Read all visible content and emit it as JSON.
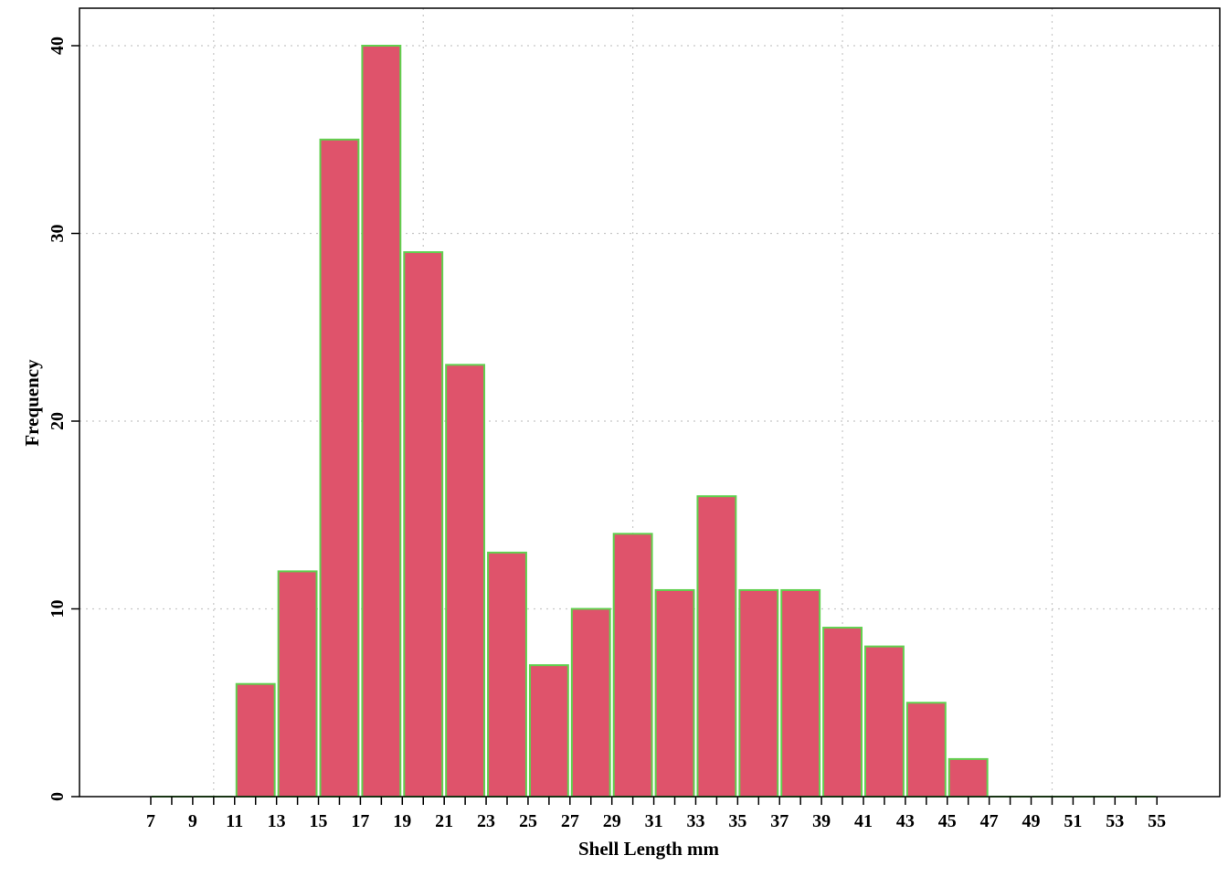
{
  "chart_data": {
    "type": "bar",
    "xlabel": "Shell Length mm",
    "ylabel": "Frequency",
    "bin_edges": [
      7,
      9,
      11,
      13,
      15,
      17,
      19,
      21,
      23,
      25,
      27,
      29,
      31,
      33,
      35,
      37,
      39,
      41,
      43,
      45,
      47,
      49,
      51,
      53,
      55
    ],
    "values": [
      0,
      0,
      6,
      12,
      35,
      40,
      29,
      23,
      13,
      7,
      10,
      14,
      11,
      16,
      11,
      11,
      9,
      8,
      5,
      2,
      0,
      0,
      0,
      0
    ],
    "x_ticks": [
      "7",
      "9",
      "11",
      "13",
      "15",
      "17",
      "19",
      "21",
      "23",
      "25",
      "27",
      "29",
      "31",
      "33",
      "35",
      "37",
      "39",
      "41",
      "43",
      "45",
      "47",
      "49",
      "51",
      "53",
      "55"
    ],
    "y_ticks": [
      "0",
      "10",
      "20",
      "30",
      "40"
    ],
    "xlim": [
      3.6,
      58
    ],
    "ylim": [
      0,
      42
    ],
    "x_grid": [
      10,
      20,
      30,
      40,
      50
    ],
    "y_grid": [
      10,
      20,
      30,
      40
    ],
    "grid": true,
    "colors": {
      "bar_fill": "#df536b",
      "bar_edge": "#61d04f",
      "grid": "#c8c8c8",
      "axis": "#000000"
    }
  }
}
